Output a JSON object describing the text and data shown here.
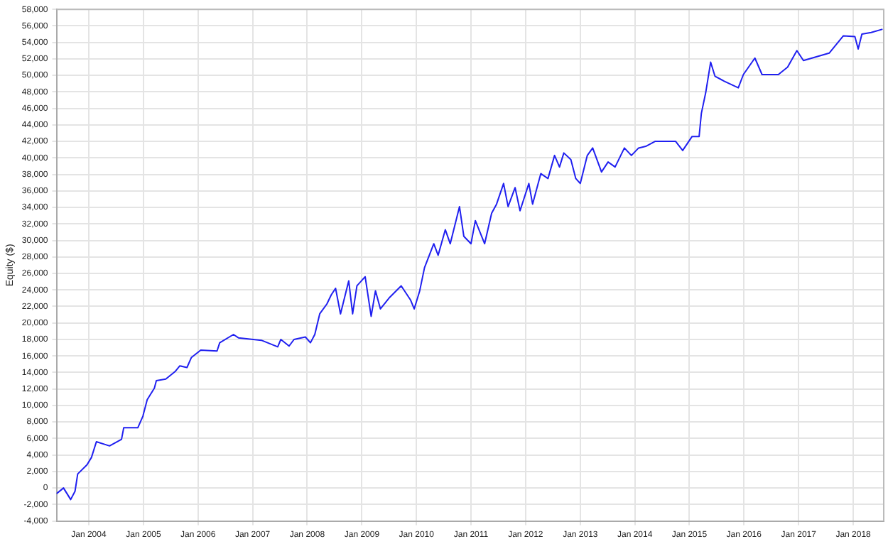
{
  "chart_data": {
    "type": "line",
    "ylabel": "Equity ($)",
    "x": [
      "2003-05-30",
      "2003-07-16",
      "2003-09-02",
      "2003-10-01",
      "2003-10-19",
      "2003-12-20",
      "2004-01-19",
      "2004-02-21",
      "2004-05-19",
      "2004-08-07",
      "2004-08-22",
      "2004-11-24",
      "2004-12-28",
      "2005-01-26",
      "2005-03-15",
      "2005-03-28",
      "2005-05-30",
      "2005-07-31",
      "2005-09-01",
      "2005-10-19",
      "2005-11-17",
      "2006-01-19",
      "2006-05-08",
      "2006-05-26",
      "2006-08-26",
      "2006-09-28",
      "2007-03-01",
      "2007-06-18",
      "2007-07-09",
      "2007-09-02",
      "2007-10-05",
      "2007-12-20",
      "2008-01-23",
      "2008-02-21",
      "2008-03-25",
      "2008-05-12",
      "2008-06-10",
      "2008-07-09",
      "2008-08-11",
      "2008-10-05",
      "2008-10-31",
      "2008-11-29",
      "2009-01-23",
      "2009-03-04",
      "2009-04-02",
      "2009-05-05",
      "2009-07-06",
      "2009-09-21",
      "2009-11-22",
      "2009-12-17",
      "2010-01-23",
      "2010-02-24",
      "2010-04-27",
      "2010-05-26",
      "2010-07-13",
      "2010-08-15",
      "2010-10-16",
      "2010-11-14",
      "2011-01-01",
      "2011-01-30",
      "2011-04-02",
      "2011-05-19",
      "2011-06-21",
      "2011-08-07",
      "2011-09-06",
      "2011-10-23",
      "2011-11-25",
      "2012-01-23",
      "2012-02-17",
      "2012-04-12",
      "2012-05-30",
      "2012-07-13",
      "2012-08-15",
      "2012-09-13",
      "2012-10-30",
      "2012-12-02",
      "2013-01-01",
      "2013-02-17",
      "2013-03-25",
      "2013-05-23",
      "2013-07-06",
      "2013-08-22",
      "2013-10-23",
      "2013-12-09",
      "2014-01-26",
      "2014-03-15",
      "2014-05-16",
      "2014-10-01",
      "2014-11-17",
      "2015-01-19",
      "2015-03-07",
      "2015-03-22",
      "2015-04-20",
      "2015-05-23",
      "2015-06-21",
      "2015-08-22",
      "2015-11-24",
      "2015-12-28",
      "2016-03-14",
      "2016-05-01",
      "2016-08-18",
      "2016-10-19",
      "2016-12-20",
      "2017-02-02",
      "2017-07-24",
      "2017-10-27",
      "2018-01-12",
      "2018-02-03",
      "2018-02-28",
      "2018-05-01",
      "2018-07-16"
    ],
    "series": [
      {
        "color": "#2020f0",
        "values": [
          -700,
          0,
          -1400,
          -400,
          1700,
          2800,
          3700,
          5600,
          5100,
          5900,
          7300,
          7300,
          8700,
          10700,
          12100,
          13000,
          13200,
          14100,
          14800,
          14600,
          15800,
          16700,
          16600,
          17600,
          18600,
          18200,
          17900,
          17100,
          18000,
          17200,
          18000,
          18300,
          17600,
          18600,
          21100,
          22300,
          23400,
          24200,
          21100,
          25100,
          21100,
          24500,
          25600,
          20800,
          23900,
          21700,
          23100,
          24500,
          22800,
          21700,
          23900,
          26700,
          29600,
          28200,
          31300,
          29600,
          34100,
          30500,
          29600,
          32400,
          29600,
          33300,
          34400,
          36900,
          34100,
          36400,
          33600,
          36900,
          34400,
          38100,
          37500,
          40300,
          38900,
          40600,
          39800,
          37500,
          36900,
          40300,
          41200,
          38300,
          39500,
          38900,
          41200,
          40300,
          41200,
          41400,
          42000,
          42000,
          40900,
          42600,
          42600,
          45400,
          47900,
          51600,
          49900,
          49300,
          48500,
          50100,
          52100,
          50100,
          50100,
          51000,
          53000,
          51800,
          52700,
          54800,
          54700,
          53200,
          55000,
          55200,
          55600
        ]
      }
    ],
    "xlim": [
      "2003-05-30",
      "2018-07-24"
    ],
    "xticks": [
      {
        "value": "2004-01-01",
        "label": "Jan 2004"
      },
      {
        "value": "2005-01-01",
        "label": "Jan 2005"
      },
      {
        "value": "2006-01-01",
        "label": "Jan 2006"
      },
      {
        "value": "2007-01-01",
        "label": "Jan 2007"
      },
      {
        "value": "2008-01-01",
        "label": "Jan 2008"
      },
      {
        "value": "2009-01-01",
        "label": "Jan 2009"
      },
      {
        "value": "2010-01-01",
        "label": "Jan 2010"
      },
      {
        "value": "2011-01-01",
        "label": "Jan 2011"
      },
      {
        "value": "2012-01-01",
        "label": "Jan 2012"
      },
      {
        "value": "2013-01-01",
        "label": "Jan 2013"
      },
      {
        "value": "2014-01-01",
        "label": "Jan 2014"
      },
      {
        "value": "2015-01-01",
        "label": "Jan 2015"
      },
      {
        "value": "2016-01-01",
        "label": "Jan 2016"
      },
      {
        "value": "2017-01-01",
        "label": "Jan 2017"
      },
      {
        "value": "2018-01-01",
        "label": "Jan 2018"
      }
    ],
    "ylim": [
      -4000,
      58000
    ],
    "yticks": [
      {
        "value": -4000,
        "label": "-4,000"
      },
      {
        "value": -2000,
        "label": "-2,000"
      },
      0,
      {
        "value": 2000,
        "label": "2,000"
      },
      {
        "value": 4000,
        "label": "4,000"
      },
      {
        "value": 6000,
        "label": "6,000"
      },
      {
        "value": 8000,
        "label": "8,000"
      },
      {
        "value": 10000,
        "label": "10,000"
      },
      {
        "value": 12000,
        "label": "12,000"
      },
      {
        "value": 14000,
        "label": "14,000"
      },
      {
        "value": 16000,
        "label": "16,000"
      },
      {
        "value": 18000,
        "label": "18,000"
      },
      {
        "value": 20000,
        "label": "20,000"
      },
      {
        "value": 22000,
        "label": "22,000"
      },
      {
        "value": 24000,
        "label": "24,000"
      },
      {
        "value": 26000,
        "label": "26,000"
      },
      {
        "value": 28000,
        "label": "28,000"
      },
      {
        "value": 30000,
        "label": "30,000"
      },
      {
        "value": 32000,
        "label": "32,000"
      },
      {
        "value": 34000,
        "label": "34,000"
      },
      {
        "value": 36000,
        "label": "36,000"
      },
      {
        "value": 38000,
        "label": "38,000"
      },
      {
        "value": 40000,
        "label": "40,000"
      },
      {
        "value": 42000,
        "label": "42,000"
      },
      {
        "value": 44000,
        "label": "44,000"
      },
      {
        "value": 46000,
        "label": "46,000"
      },
      {
        "value": 48000,
        "label": "48,000"
      },
      {
        "value": 50000,
        "label": "50,000"
      },
      {
        "value": 52000,
        "label": "52,000"
      },
      {
        "value": 54000,
        "label": "54,000"
      },
      {
        "value": 56000,
        "label": "56,000"
      },
      {
        "value": 58000,
        "label": "58,000"
      }
    ],
    "grid": true
  }
}
